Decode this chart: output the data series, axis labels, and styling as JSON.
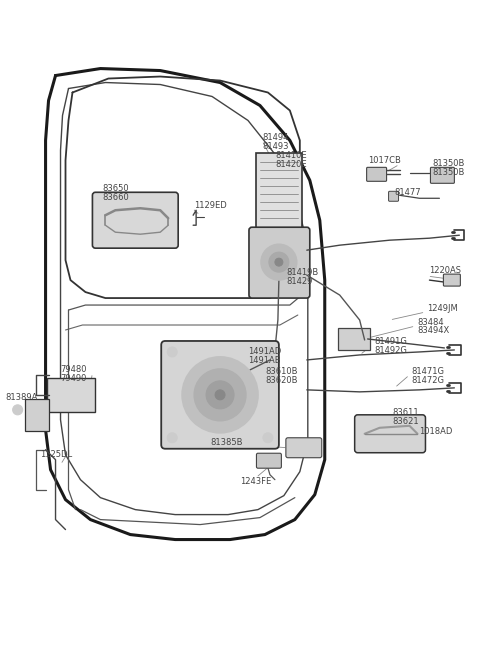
{
  "bg_color": "#ffffff",
  "fig_width": 4.8,
  "fig_height": 6.55,
  "dpi": 100,
  "lc": "#2a2a2a",
  "lc_med": "#444444",
  "lc_light": "#666666",
  "lbl_color": "#444444",
  "lbl_fs": 6.0,
  "xlim": [
    0,
    480
  ],
  "ylim": [
    0,
    655
  ]
}
